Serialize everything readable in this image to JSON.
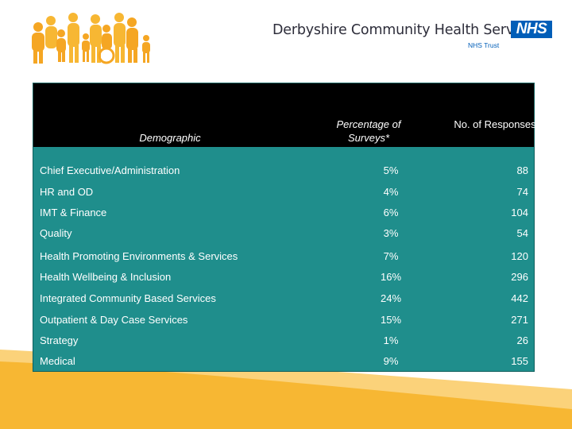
{
  "header": {
    "org_name": "Derbyshire Community Health Services",
    "nhs_badge": "NHS",
    "nhs_trust": "NHS Trust",
    "colors": {
      "nhs_blue": "#005eb8",
      "figures_orange": "#f5a623",
      "swoosh": "#f7b733"
    }
  },
  "table": {
    "columns": {
      "demographic": "Demographic",
      "percentage": "Percentage of Surveys*",
      "responses": "No. of Responses"
    },
    "rows": [
      {
        "demographic": "Chief Executive/Administration",
        "percentage": "5%",
        "responses": "88"
      },
      {
        "demographic": "HR and OD",
        "percentage": "4%",
        "responses": "74"
      },
      {
        "demographic": "IMT & Finance",
        "percentage": "6%",
        "responses": "104"
      },
      {
        "demographic": "Quality",
        "percentage": "3%",
        "responses": "54"
      },
      {
        "demographic": "Health Promoting Environments & Services",
        "percentage": "7%",
        "responses": "120"
      },
      {
        "demographic": "Health Wellbeing & Inclusion",
        "percentage": "16%",
        "responses": "296"
      },
      {
        "demographic": "Integrated Community Based Services",
        "percentage": "24%",
        "responses": "442"
      },
      {
        "demographic": "Outpatient & Day Case Services",
        "percentage": "15%",
        "responses": "271"
      },
      {
        "demographic": "Strategy",
        "percentage": "1%",
        "responses": "26"
      },
      {
        "demographic": "Medical",
        "percentage": "9%",
        "responses": "155"
      }
    ],
    "colors": {
      "body": "#1f8e8c",
      "head": "#000000"
    }
  }
}
